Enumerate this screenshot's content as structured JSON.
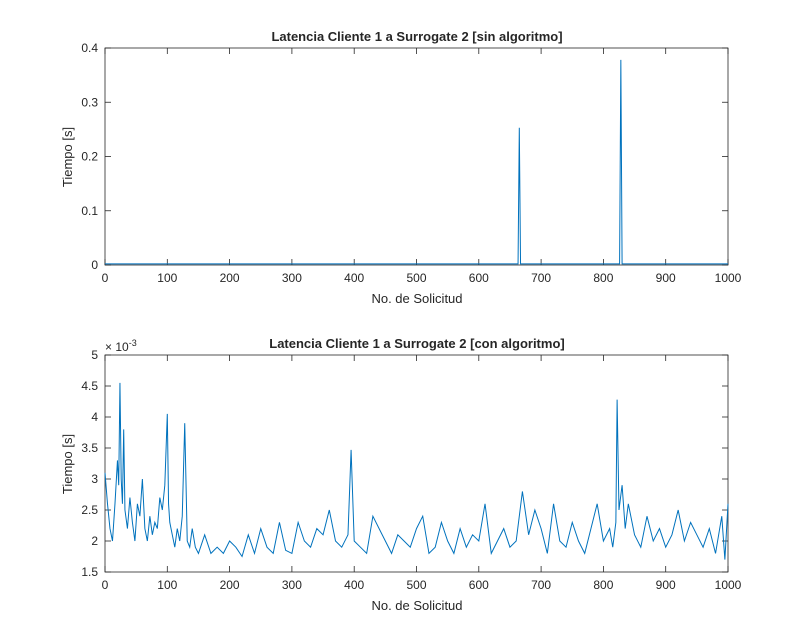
{
  "chart_data": [
    {
      "type": "line",
      "title": "Latencia Cliente 1 a Surrogate 2 [sin algoritmo]",
      "xlabel": "No. de Solicitud",
      "ylabel": "Tiempo [s]",
      "xlim": [
        0,
        1000
      ],
      "ylim": [
        0,
        0.4
      ],
      "xticks": [
        0,
        100,
        200,
        300,
        400,
        500,
        600,
        700,
        800,
        900,
        1000
      ],
      "yticks": [
        0,
        0.1,
        0.2,
        0.3,
        0.4
      ],
      "xtick_labels": [
        "0",
        "100",
        "200",
        "300",
        "400",
        "500",
        "600",
        "700",
        "800",
        "900",
        "1000"
      ],
      "ytick_labels": [
        "0",
        "0.1",
        "0.2",
        "0.3",
        "0.4"
      ],
      "grid": false,
      "color": "#0072bd",
      "series": [
        {
          "x": [
            0,
            100,
            200,
            300,
            400,
            500,
            600,
            660,
            663,
            665,
            667,
            670,
            700,
            800,
            823,
            826,
            828,
            830,
            833,
            900,
            1000
          ],
          "y": [
            0.002,
            0.002,
            0.002,
            0.002,
            0.002,
            0.002,
            0.002,
            0.002,
            0.002,
            0.253,
            0.002,
            0.002,
            0.002,
            0.002,
            0.002,
            0.002,
            0.378,
            0.002,
            0.002,
            0.002,
            0.002
          ]
        }
      ]
    },
    {
      "type": "line",
      "title": "Latencia Cliente 1 a Surrogate 2 [con algoritmo]",
      "xlabel": "No. de Solicitud",
      "ylabel": "Tiempo [s]",
      "xlim": [
        0,
        1000
      ],
      "ylim": [
        1.5,
        5
      ],
      "y_multiplier": "× 10",
      "y_exponent": "-3",
      "xticks": [
        0,
        100,
        200,
        300,
        400,
        500,
        600,
        700,
        800,
        900,
        1000
      ],
      "yticks": [
        1.5,
        2,
        2.5,
        3,
        3.5,
        4,
        4.5,
        5
      ],
      "xtick_labels": [
        "0",
        "100",
        "200",
        "300",
        "400",
        "500",
        "600",
        "700",
        "800",
        "900",
        "1000"
      ],
      "ytick_labels": [
        "1.5",
        "2",
        "2.5",
        "3",
        "3.5",
        "4",
        "4.5",
        "5"
      ],
      "grid": false,
      "color": "#0072bd",
      "series": [
        {
          "x": [
            0,
            4,
            8,
            12,
            16,
            20,
            22,
            24,
            26,
            28,
            30,
            32,
            36,
            40,
            44,
            48,
            52,
            56,
            60,
            64,
            68,
            72,
            76,
            80,
            84,
            88,
            92,
            96,
            100,
            102,
            104,
            108,
            112,
            116,
            120,
            124,
            128,
            132,
            136,
            140,
            145,
            150,
            160,
            170,
            180,
            190,
            200,
            210,
            220,
            230,
            240,
            250,
            260,
            270,
            280,
            290,
            300,
            310,
            320,
            330,
            340,
            350,
            360,
            370,
            380,
            390,
            395,
            400,
            410,
            420,
            430,
            440,
            450,
            460,
            470,
            480,
            490,
            500,
            510,
            520,
            530,
            540,
            550,
            560,
            570,
            580,
            590,
            600,
            610,
            620,
            630,
            640,
            650,
            660,
            670,
            680,
            690,
            700,
            710,
            720,
            730,
            740,
            750,
            760,
            770,
            780,
            790,
            800,
            810,
            815,
            820,
            822,
            825,
            830,
            835,
            840,
            850,
            860,
            870,
            880,
            890,
            900,
            910,
            920,
            930,
            940,
            950,
            960,
            970,
            980,
            990,
            995,
            1000
          ],
          "y": [
            3.1,
            2.6,
            2.2,
            2.0,
            2.6,
            3.3,
            2.9,
            4.55,
            3.0,
            2.6,
            3.8,
            2.5,
            2.2,
            2.7,
            2.3,
            2.0,
            2.6,
            2.4,
            3.0,
            2.2,
            2.0,
            2.4,
            2.1,
            2.3,
            2.2,
            2.7,
            2.5,
            2.9,
            4.05,
            2.6,
            2.3,
            2.1,
            1.9,
            2.2,
            2.0,
            2.4,
            3.9,
            2.0,
            1.9,
            2.2,
            1.9,
            1.8,
            2.1,
            1.8,
            1.9,
            1.8,
            2.0,
            1.9,
            1.75,
            2.1,
            1.8,
            2.2,
            1.9,
            1.8,
            2.3,
            1.85,
            1.8,
            2.3,
            2.0,
            1.9,
            2.2,
            2.1,
            2.5,
            2.0,
            1.9,
            2.1,
            3.47,
            2.0,
            1.9,
            1.8,
            2.4,
            2.2,
            2.0,
            1.8,
            2.1,
            2.0,
            1.9,
            2.2,
            2.4,
            1.8,
            1.9,
            2.3,
            2.0,
            1.8,
            2.2,
            1.9,
            2.1,
            2.0,
            2.6,
            1.8,
            2.0,
            2.2,
            1.9,
            2.0,
            2.8,
            2.1,
            2.5,
            2.2,
            1.8,
            2.6,
            2.0,
            1.9,
            2.3,
            2.0,
            1.8,
            2.2,
            2.6,
            2.0,
            2.2,
            1.9,
            2.3,
            4.28,
            2.5,
            2.9,
            2.2,
            2.6,
            2.1,
            1.9,
            2.4,
            2.0,
            2.2,
            1.9,
            2.1,
            2.5,
            2.0,
            2.3,
            2.1,
            1.9,
            2.2,
            1.8,
            2.4,
            1.7,
            2.6
          ]
        }
      ]
    }
  ]
}
